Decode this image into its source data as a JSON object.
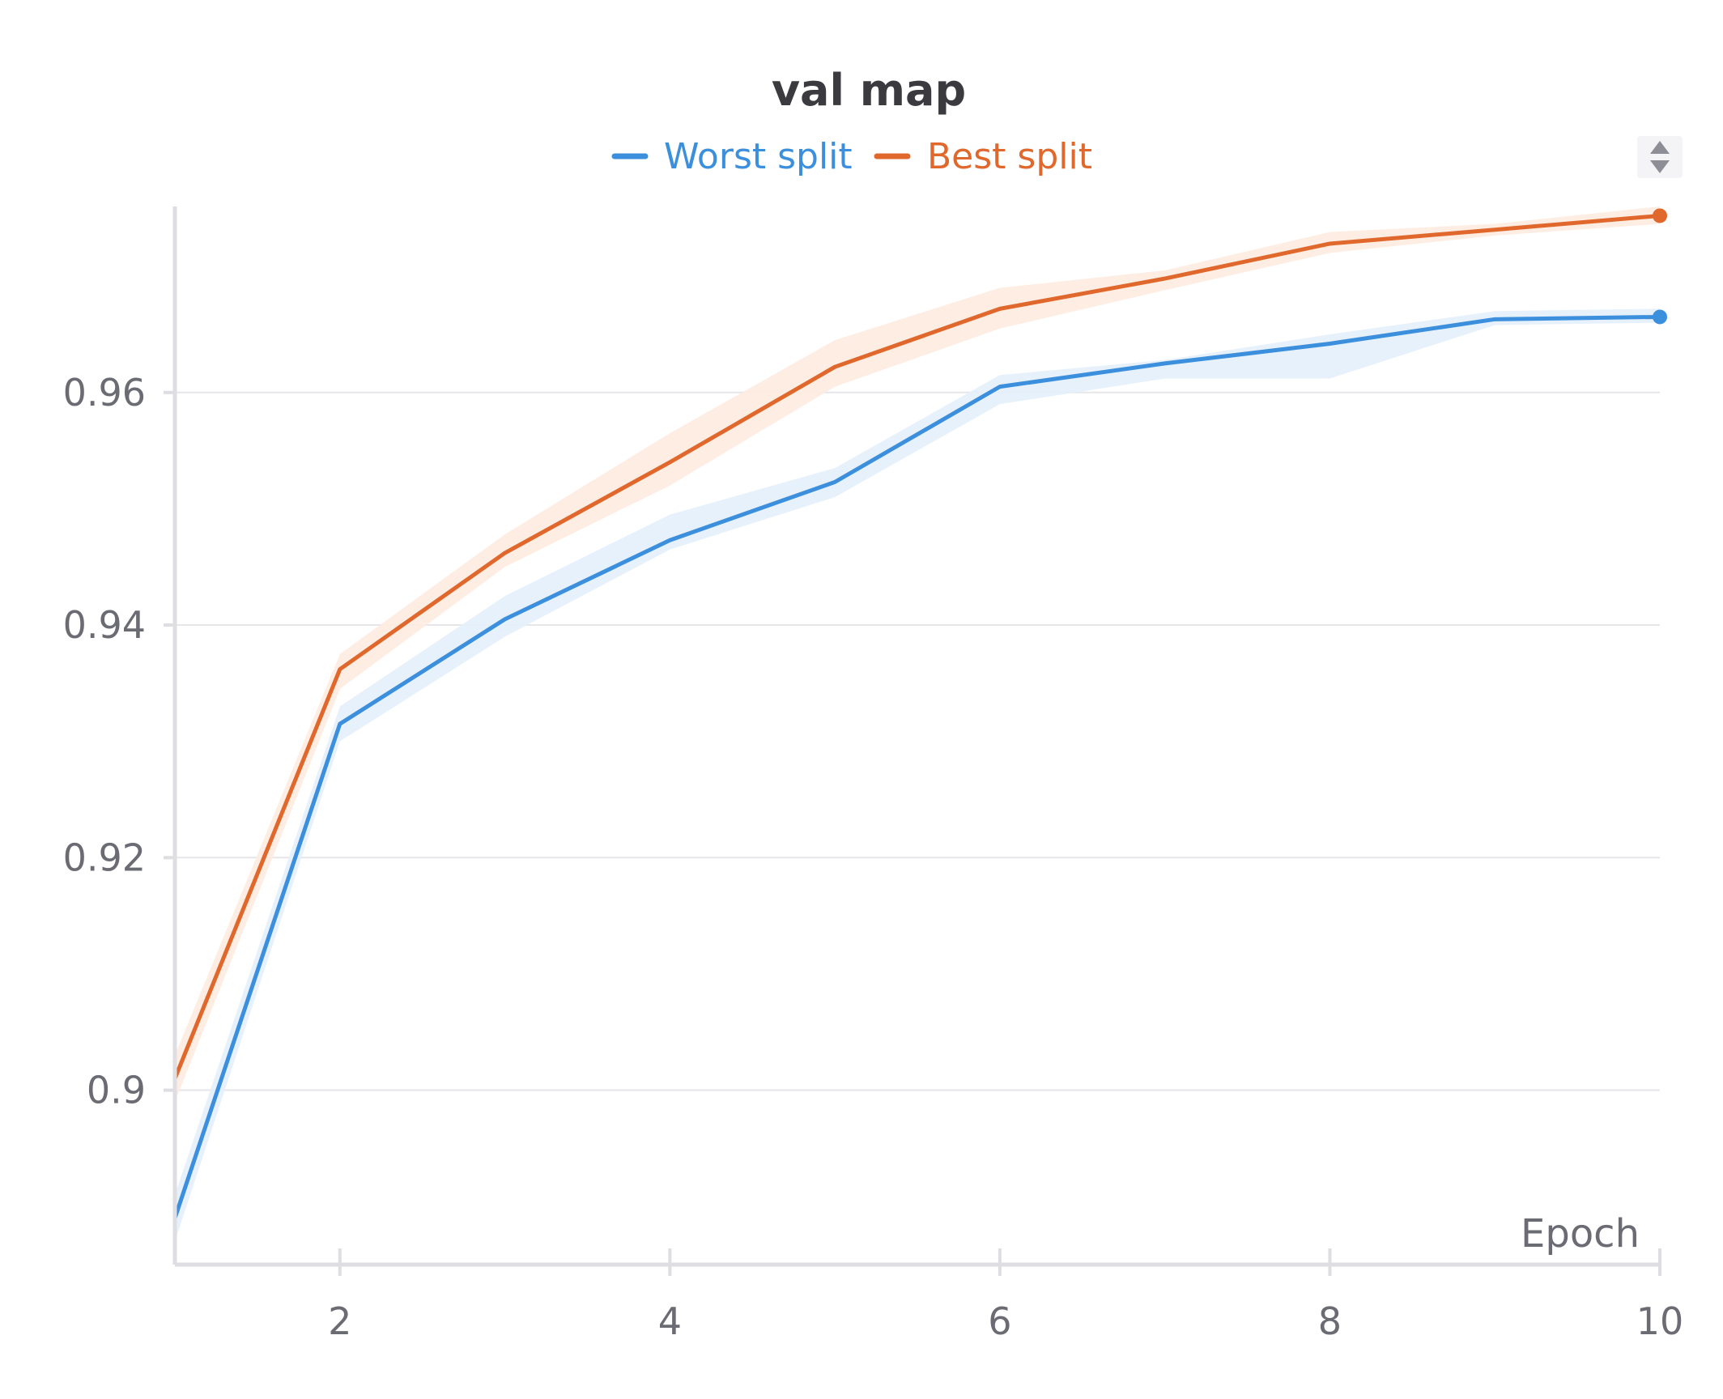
{
  "chart_data": {
    "type": "line",
    "title": "val map",
    "xlabel": "Epoch",
    "ylabel": "",
    "x": [
      1,
      2,
      3,
      4,
      5,
      6,
      7,
      8,
      9,
      10
    ],
    "xlim": [
      1,
      10
    ],
    "ylim": [
      0.885,
      0.976
    ],
    "xticks": [
      2,
      4,
      6,
      8,
      10
    ],
    "yticks": [
      0.9,
      0.92,
      0.94,
      0.96
    ],
    "ytick_labels": [
      "0.9",
      "0.92",
      "0.94",
      "0.96"
    ],
    "grid": true,
    "legend_placement": "top-center",
    "series": [
      {
        "name": "Worst split",
        "color": "#3b8fdc",
        "band_color": "#e4effb",
        "values": [
          0.889,
          0.9315,
          0.9405,
          0.9473,
          0.9523,
          0.9605,
          0.9625,
          0.9642,
          0.9663,
          0.9665
        ],
        "lower": [
          0.887,
          0.93,
          0.939,
          0.9465,
          0.951,
          0.959,
          0.9612,
          0.9612,
          0.9658,
          0.966
        ],
        "upper": [
          0.891,
          0.933,
          0.9425,
          0.9495,
          0.9535,
          0.9615,
          0.9628,
          0.965,
          0.967,
          0.9672
        ]
      },
      {
        "name": "Best split",
        "color": "#e0682c",
        "band_color": "#fdebe0",
        "values": [
          0.901,
          0.9362,
          0.9462,
          0.954,
          0.9622,
          0.9672,
          0.9698,
          0.9728,
          0.974,
          0.9752
        ],
        "lower": [
          0.899,
          0.9345,
          0.945,
          0.952,
          0.9605,
          0.9655,
          0.9688,
          0.972,
          0.9735,
          0.9745
        ],
        "upper": [
          0.903,
          0.9375,
          0.9478,
          0.9565,
          0.9645,
          0.969,
          0.9705,
          0.9738,
          0.9745,
          0.976
        ]
      }
    ]
  }
}
